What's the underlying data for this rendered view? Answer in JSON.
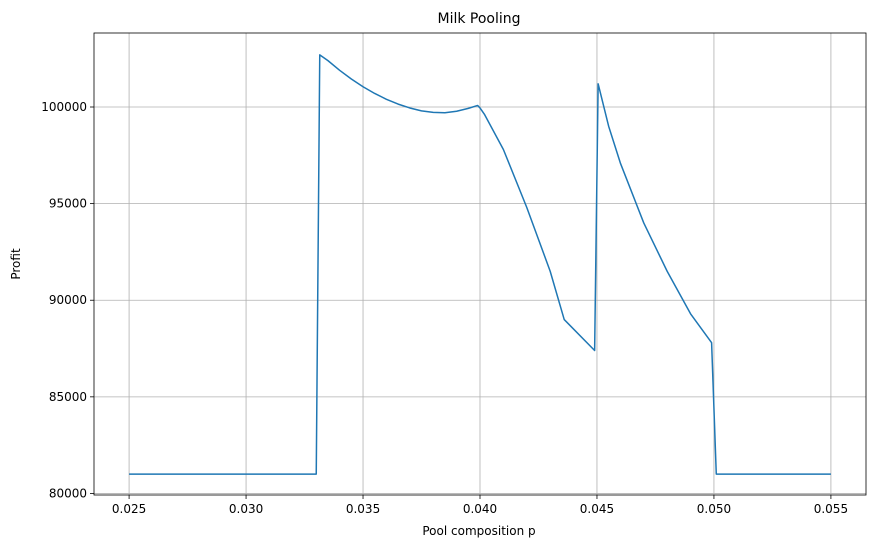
{
  "chart_data": {
    "type": "line",
    "title": "Milk Pooling",
    "xlabel": "Pool composition p",
    "ylabel": "Profit",
    "xlim": [
      0.0235,
      0.0565
    ],
    "ylim": [
      79920,
      103830
    ],
    "xticks": [
      "0.025",
      "0.030",
      "0.035",
      "0.040",
      "0.045",
      "0.050",
      "0.055"
    ],
    "yticks": [
      "80000",
      "85000",
      "90000",
      "95000",
      "100000"
    ],
    "grid": true,
    "line_color": "#1f77b4",
    "series": [
      {
        "x": [
          0.025,
          0.033,
          0.03315,
          0.0335,
          0.034,
          0.0345,
          0.035,
          0.0355,
          0.036,
          0.0365,
          0.037,
          0.0375,
          0.038,
          0.0385,
          0.039,
          0.0395,
          0.0399,
          0.04,
          0.0402,
          0.041,
          0.042,
          0.043,
          0.0436,
          0.0449,
          0.04505,
          0.0455,
          0.046,
          0.047,
          0.048,
          0.049,
          0.0499,
          0.0501,
          0.055
        ],
        "y": [
          81000,
          81000,
          102700,
          102400,
          101900,
          101450,
          101050,
          100700,
          100400,
          100150,
          99950,
          99800,
          99720,
          99700,
          99780,
          99930,
          100080,
          99950,
          99600,
          97800,
          94800,
          91500,
          89000,
          87400,
          101200,
          99000,
          97100,
          94000,
          91500,
          89300,
          87800,
          81000,
          81000
        ]
      }
    ]
  }
}
